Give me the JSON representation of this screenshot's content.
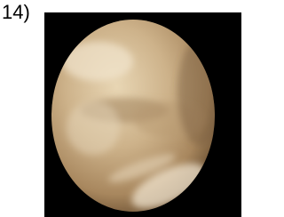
{
  "label": "14)"
}
